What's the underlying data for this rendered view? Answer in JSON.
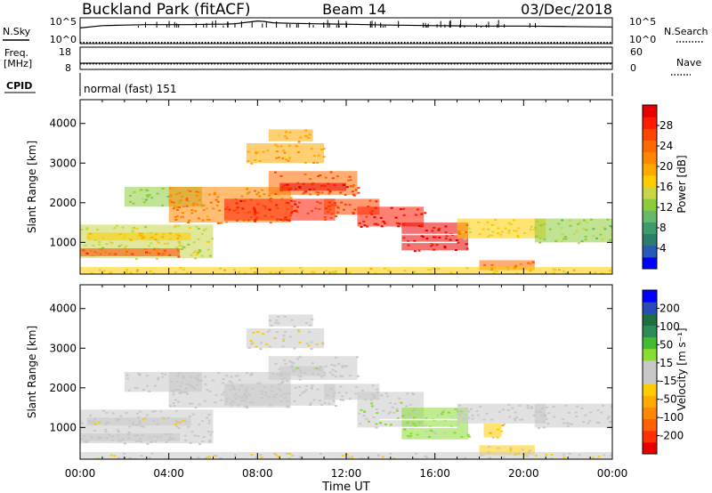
{
  "header": {
    "title": "Buckland Park (fitACF)",
    "beam": "Beam 14",
    "date": "03/Dec/2018"
  },
  "chart_data": {
    "type": "heatmap",
    "xlabel": "Time UT",
    "x_ticks": [
      "00:00",
      "04:00",
      "08:00",
      "12:00",
      "16:00",
      "20:00",
      "00:00"
    ],
    "x_range_hours": [
      0,
      24
    ],
    "strip_panels": {
      "nsky": {
        "label": "N.Sky",
        "ticks": [
          "10^5",
          "10^0"
        ],
        "right_label": "N.Search",
        "right_ticks": [
          "10^5",
          "10^0"
        ],
        "log_range": [
          0,
          5
        ],
        "series": [
          {
            "name": "N.Sky",
            "style": "solid",
            "points": [
              [
                0.0,
                3.2
              ],
              [
                1.0,
                3.7
              ],
              [
                2.0,
                3.8
              ],
              [
                3.0,
                3.9
              ],
              [
                4.0,
                3.9
              ],
              [
                5.0,
                3.9
              ],
              [
                6.0,
                4.0
              ],
              [
                6.5,
                4.0
              ],
              [
                7.0,
                4.1
              ],
              [
                7.5,
                4.4
              ],
              [
                8.0,
                4.7
              ],
              [
                8.3,
                4.6
              ],
              [
                8.7,
                4.3
              ],
              [
                9.5,
                4.2
              ],
              [
                10.5,
                4.1
              ],
              [
                12.0,
                4.0
              ],
              [
                14.0,
                3.8
              ],
              [
                16.0,
                3.7
              ],
              [
                18.0,
                3.6
              ],
              [
                20.0,
                3.6
              ],
              [
                22.0,
                3.5
              ],
              [
                24.0,
                3.4
              ]
            ]
          },
          {
            "name": "N.Search",
            "style": "dotted",
            "points": [
              [
                0.0,
                0.05
              ],
              [
                24.0,
                0.05
              ]
            ]
          }
        ]
      },
      "freq": {
        "label": "Freq.",
        "unit": "[MHz]",
        "ticks": [
          "18",
          "8"
        ],
        "right_label": "Nave",
        "right_ticks": [
          "60",
          "0"
        ],
        "range": [
          8,
          18
        ],
        "series": [
          {
            "name": "Freq.",
            "style": "solid",
            "points": [
              [
                0.0,
                10.4
              ],
              [
                24.0,
                10.4
              ]
            ]
          },
          {
            "name": "Nave",
            "style": "dotted",
            "points": [
              [
                0.0,
                10.0
              ],
              [
                24.0,
                10.0
              ]
            ]
          }
        ]
      },
      "cpid": {
        "label": "CPID",
        "text": "normal (fast) 151"
      }
    },
    "panels": [
      {
        "name": "power",
        "ylabel": "Slant Range [km]",
        "y_ticks": [
          1000,
          2000,
          3000,
          4000
        ],
        "ylim": [
          200,
          4600
        ],
        "colorbar": {
          "label": "Power [dB]",
          "ticks": [
            "4",
            "8",
            "12",
            "16",
            "20",
            "24",
            "28"
          ],
          "range": [
            0,
            32
          ],
          "colors": [
            "#0000ff",
            "#2a5ab8",
            "#2e7d6a",
            "#3f9a6a",
            "#66b86a",
            "#8ccc3c",
            "#c8d64a",
            "#ffcc00",
            "#ffaa00",
            "#ff8800",
            "#ff6a00",
            "#ff4500",
            "#ff1a00",
            "#e80000"
          ]
        },
        "regions": [
          {
            "t": [
              0.0,
              6.0
            ],
            "r": [
              600,
              1450
            ],
            "value": 15
          },
          {
            "t": [
              0.0,
              4.5
            ],
            "r": [
              650,
              850
            ],
            "value": 26
          },
          {
            "t": [
              0.3,
              5.0
            ],
            "r": [
              1050,
              1250
            ],
            "value": 18
          },
          {
            "t": [
              2.0,
              5.5
            ],
            "r": [
              1900,
              2400
            ],
            "value": 13
          },
          {
            "t": [
              4.0,
              9.5
            ],
            "r": [
              1500,
              2400
            ],
            "value": 22
          },
          {
            "t": [
              6.5,
              11.5
            ],
            "r": [
              1550,
              2100
            ],
            "value": 28
          },
          {
            "t": [
              8.5,
              12.5
            ],
            "r": [
              2200,
              2800
            ],
            "value": 25
          },
          {
            "t": [
              9.0,
              12.0
            ],
            "r": [
              2300,
              2500
            ],
            "value": 30
          },
          {
            "t": [
              7.5,
              11.0
            ],
            "r": [
              3000,
              3500
            ],
            "value": 20
          },
          {
            "t": [
              8.5,
              10.5
            ],
            "r": [
              3550,
              3850
            ],
            "value": 19
          },
          {
            "t": [
              11.0,
              13.5
            ],
            "r": [
              1700,
              2100
            ],
            "value": 27
          },
          {
            "t": [
              12.5,
              15.5
            ],
            "r": [
              1400,
              1900
            ],
            "value": 29
          },
          {
            "t": [
              14.5,
              17.5
            ],
            "r": [
              800,
              1500
            ],
            "value": 30
          },
          {
            "t": [
              17.0,
              21.0
            ],
            "r": [
              1100,
              1600
            ],
            "value": 16
          },
          {
            "t": [
              18.0,
              20.5
            ],
            "r": [
              300,
              550
            ],
            "value": 24
          },
          {
            "t": [
              20.5,
              24.0
            ],
            "r": [
              1000,
              1600
            ],
            "value": 13
          },
          {
            "t": [
              0.0,
              24.0
            ],
            "r": [
              200,
              380
            ],
            "value": 17
          }
        ]
      },
      {
        "name": "velocity",
        "ylabel": "Slant Range [km]",
        "y_ticks": [
          1000,
          2000,
          3000,
          4000
        ],
        "ylim": [
          200,
          4600
        ],
        "colorbar": {
          "label": "Velocity [m s⁻¹]",
          "ticks": [
            "-200",
            "-100",
            "-50",
            "-15",
            "15",
            "50",
            "100",
            "200"
          ],
          "range": [
            -250,
            250
          ],
          "colors": [
            "#e80000",
            "#ff3000",
            "#ff6000",
            "#ff8800",
            "#ffaa00",
            "#ffcc00",
            "#c8c8c8",
            "#c8c8c8",
            "#88dd33",
            "#44bb33",
            "#2e8b57",
            "#1e6e3e",
            "#2a4ab8",
            "#0000ff"
          ]
        },
        "regions": [
          {
            "t": [
              0.0,
              6.0
            ],
            "r": [
              600,
              1450
            ],
            "value": 0
          },
          {
            "t": [
              0.0,
              4.5
            ],
            "r": [
              650,
              850
            ],
            "value": 0
          },
          {
            "t": [
              0.3,
              5.0
            ],
            "r": [
              1050,
              1250
            ],
            "value": -20
          },
          {
            "t": [
              2.0,
              5.5
            ],
            "r": [
              1900,
              2400
            ],
            "value": 0
          },
          {
            "t": [
              4.0,
              9.5
            ],
            "r": [
              1500,
              2400
            ],
            "value": 0
          },
          {
            "t": [
              6.5,
              11.5
            ],
            "r": [
              1550,
              2100
            ],
            "value": 0
          },
          {
            "t": [
              8.5,
              12.5
            ],
            "r": [
              2200,
              2800
            ],
            "value": 0
          },
          {
            "t": [
              9.0,
              11.0
            ],
            "r": [
              2300,
              2550
            ],
            "value": 30
          },
          {
            "t": [
              7.5,
              11.0
            ],
            "r": [
              3000,
              3500
            ],
            "value": -30
          },
          {
            "t": [
              8.5,
              10.5
            ],
            "r": [
              3550,
              3850
            ],
            "value": 0
          },
          {
            "t": [
              11.0,
              13.5
            ],
            "r": [
              1700,
              2100
            ],
            "value": 0
          },
          {
            "t": [
              12.5,
              15.5
            ],
            "r": [
              1000,
              1900
            ],
            "value": 30
          },
          {
            "t": [
              14.5,
              17.5
            ],
            "r": [
              700,
              1500
            ],
            "value": 40
          },
          {
            "t": [
              17.0,
              21.0
            ],
            "r": [
              1100,
              1600
            ],
            "value": 0
          },
          {
            "t": [
              18.2,
              19.0
            ],
            "r": [
              750,
              1100
            ],
            "value": -60
          },
          {
            "t": [
              18.0,
              20.5
            ],
            "r": [
              300,
              550
            ],
            "value": -40
          },
          {
            "t": [
              20.5,
              24.0
            ],
            "r": [
              1000,
              1600
            ],
            "value": 0
          },
          {
            "t": [
              0.0,
              24.0
            ],
            "r": [
              200,
              380
            ],
            "value": -35
          }
        ]
      }
    ]
  }
}
